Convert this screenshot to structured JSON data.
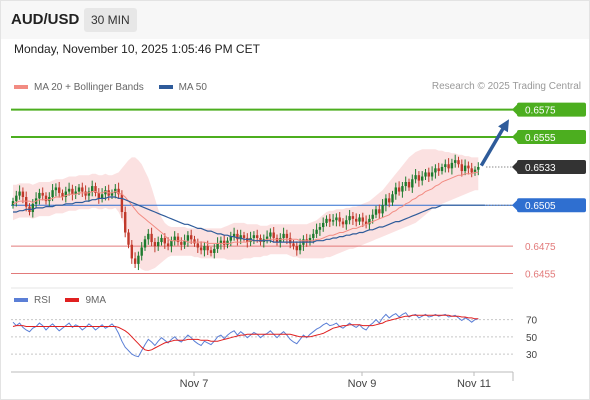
{
  "header": {
    "symbol": "AUD/USD",
    "interval": "30 MIN"
  },
  "timestamp": "Monday, November 10, 2025 1:05:46 PM CET",
  "legend": {
    "ma20": {
      "label": "MA 20 + Bollinger Bands",
      "color": "#f28b82"
    },
    "ma50": {
      "label": "MA 50",
      "color": "#2e5b9a"
    },
    "rsi": {
      "label": "RSI",
      "color": "#5b7fd6"
    },
    "ma9": {
      "label": "9MA",
      "color": "#e02020"
    }
  },
  "credit": "Research © 2025 Trading Central",
  "colors": {
    "up": "#1e7b2e",
    "down": "#c0392b",
    "target": "#4cae1f",
    "support": "#e27a7a",
    "pivot": "#2f6fd0",
    "price": "#333333",
    "arrow": "#2e5b9a"
  },
  "chart_data": [
    {
      "type": "candlestick",
      "price_range": [
        0.6448,
        0.6585
      ],
      "x_ticks": [
        "Nov 7",
        "Nov 9",
        "Nov 11"
      ],
      "levels": [
        {
          "value": 0.6575,
          "label": "0.6575",
          "kind": "target"
        },
        {
          "value": 0.6555,
          "label": "0.6555",
          "kind": "target"
        },
        {
          "value": 0.6533,
          "label": "0.6533",
          "kind": "price"
        },
        {
          "value": 0.6505,
          "label": "0.6505",
          "kind": "pivot"
        },
        {
          "value": 0.6475,
          "label": "0.6475",
          "kind": "support"
        },
        {
          "value": 0.6455,
          "label": "0.6455",
          "kind": "support"
        }
      ],
      "close": [
        0.6508,
        0.6512,
        0.6515,
        0.6511,
        0.6504,
        0.65,
        0.6506,
        0.651,
        0.6514,
        0.6512,
        0.6508,
        0.6511,
        0.6516,
        0.6518,
        0.6514,
        0.6511,
        0.6515,
        0.6517,
        0.6513,
        0.6515,
        0.6518,
        0.6515,
        0.6512,
        0.6515,
        0.6519,
        0.6514,
        0.651,
        0.6513,
        0.6516,
        0.6512,
        0.6514,
        0.6517,
        0.6513,
        0.65,
        0.6485,
        0.6476,
        0.6466,
        0.6462,
        0.6468,
        0.6474,
        0.648,
        0.6484,
        0.6478,
        0.6475,
        0.6478,
        0.6481,
        0.6477,
        0.6475,
        0.6479,
        0.6482,
        0.6478,
        0.6476,
        0.6479,
        0.6483,
        0.648,
        0.6477,
        0.6474,
        0.6472,
        0.6475,
        0.6472,
        0.647,
        0.6473,
        0.6477,
        0.6479,
        0.6476,
        0.6479,
        0.6482,
        0.6484,
        0.648,
        0.6483,
        0.6481,
        0.6478,
        0.6481,
        0.6483,
        0.6481,
        0.6478,
        0.648,
        0.6482,
        0.6485,
        0.6481,
        0.6478,
        0.6481,
        0.6484,
        0.6481,
        0.6477,
        0.6475,
        0.6472,
        0.6476,
        0.648,
        0.6478,
        0.6481,
        0.6484,
        0.6487,
        0.6489,
        0.6492,
        0.6495,
        0.6493,
        0.6494,
        0.6496,
        0.6493,
        0.6491,
        0.6494,
        0.6497,
        0.6495,
        0.6493,
        0.6496,
        0.6493,
        0.6491,
        0.6495,
        0.6498,
        0.6502,
        0.6499,
        0.6505,
        0.651,
        0.6507,
        0.6513,
        0.6518,
        0.6515,
        0.6519,
        0.6522,
        0.6518,
        0.6524,
        0.6527,
        0.6523,
        0.6526,
        0.6529,
        0.6526,
        0.6529,
        0.6532,
        0.653,
        0.6533,
        0.6535,
        0.6532,
        0.6536,
        0.6538,
        0.6535,
        0.653,
        0.6534,
        0.6532,
        0.6529,
        0.6531,
        0.6533
      ],
      "ma20": [
        0.6506,
        0.6507,
        0.6508,
        0.6508,
        0.6508,
        0.6508,
        0.6507,
        0.6508,
        0.6509,
        0.6509,
        0.6509,
        0.6509,
        0.651,
        0.6511,
        0.6511,
        0.6511,
        0.6512,
        0.6513,
        0.6513,
        0.6513,
        0.6514,
        0.6514,
        0.6514,
        0.6514,
        0.6515,
        0.6515,
        0.6514,
        0.6514,
        0.6515,
        0.6514,
        0.6514,
        0.6515,
        0.6514,
        0.6513,
        0.6511,
        0.6508,
        0.6505,
        0.6502,
        0.6499,
        0.6497,
        0.6495,
        0.6493,
        0.6491,
        0.6489,
        0.6487,
        0.6485,
        0.6483,
        0.648,
        0.6479,
        0.6479,
        0.6479,
        0.6479,
        0.6479,
        0.6478,
        0.6478,
        0.6478,
        0.6478,
        0.6478,
        0.6478,
        0.6477,
        0.6477,
        0.6477,
        0.6477,
        0.6477,
        0.6477,
        0.6477,
        0.6477,
        0.6478,
        0.6478,
        0.6478,
        0.6478,
        0.6478,
        0.6479,
        0.6479,
        0.6479,
        0.6479,
        0.6479,
        0.648,
        0.648,
        0.648,
        0.648,
        0.648,
        0.648,
        0.648,
        0.648,
        0.648,
        0.648,
        0.6479,
        0.6479,
        0.6479,
        0.6479,
        0.6479,
        0.648,
        0.648,
        0.6481,
        0.6482,
        0.6483,
        0.6483,
        0.6484,
        0.6485,
        0.6485,
        0.6486,
        0.6487,
        0.6488,
        0.6488,
        0.6489,
        0.649,
        0.6491,
        0.6492,
        0.6493,
        0.6494,
        0.6495,
        0.6496,
        0.6497,
        0.6498,
        0.65,
        0.6501,
        0.6503,
        0.6504,
        0.6506,
        0.6507,
        0.6509,
        0.651,
        0.6512,
        0.6513,
        0.6515,
        0.6516,
        0.6517,
        0.6519,
        0.652,
        0.6522,
        0.6523,
        0.6524,
        0.6525,
        0.6526,
        0.6527,
        0.6527,
        0.6528,
        0.6528,
        0.6528,
        0.6529,
        0.6529
      ],
      "bb_upper": [
        0.652,
        0.652,
        0.6521,
        0.6521,
        0.6521,
        0.6521,
        0.652,
        0.6521,
        0.6522,
        0.6522,
        0.6522,
        0.6522,
        0.6523,
        0.6524,
        0.6524,
        0.6524,
        0.6525,
        0.6526,
        0.6526,
        0.6526,
        0.6527,
        0.6527,
        0.6527,
        0.6527,
        0.6528,
        0.6528,
        0.6527,
        0.6527,
        0.6528,
        0.6527,
        0.6527,
        0.6528,
        0.6529,
        0.6532,
        0.6535,
        0.6538,
        0.654,
        0.654,
        0.6538,
        0.6535,
        0.653,
        0.6525,
        0.6518,
        0.651,
        0.6502,
        0.6496,
        0.6492,
        0.649,
        0.6489,
        0.6489,
        0.6489,
        0.6489,
        0.6489,
        0.6488,
        0.6488,
        0.6488,
        0.6488,
        0.6488,
        0.6488,
        0.6488,
        0.6488,
        0.6488,
        0.6488,
        0.6488,
        0.6489,
        0.649,
        0.6491,
        0.6492,
        0.6492,
        0.6492,
        0.6492,
        0.6491,
        0.6491,
        0.6491,
        0.6491,
        0.649,
        0.649,
        0.649,
        0.6491,
        0.6491,
        0.6491,
        0.6491,
        0.6491,
        0.6491,
        0.6491,
        0.6491,
        0.6491,
        0.6491,
        0.6491,
        0.6491,
        0.6492,
        0.6493,
        0.6494,
        0.6496,
        0.6498,
        0.65,
        0.6501,
        0.6501,
        0.6502,
        0.6502,
        0.6502,
        0.6503,
        0.6503,
        0.6504,
        0.6504,
        0.6505,
        0.6506,
        0.6507,
        0.6508,
        0.651,
        0.6512,
        0.6514,
        0.6516,
        0.6519,
        0.6522,
        0.6525,
        0.6528,
        0.6531,
        0.6534,
        0.6537,
        0.654,
        0.6542,
        0.6544,
        0.6545,
        0.6546,
        0.6546,
        0.6546,
        0.6546,
        0.6546,
        0.6545,
        0.6545,
        0.6544,
        0.6544,
        0.6543,
        0.6543,
        0.6542,
        0.6542,
        0.6541,
        0.6541,
        0.654,
        0.654,
        0.654
      ],
      "bb_lower": [
        0.6494,
        0.6495,
        0.6496,
        0.6496,
        0.6496,
        0.6496,
        0.6495,
        0.6496,
        0.6497,
        0.6497,
        0.6497,
        0.6497,
        0.6498,
        0.6499,
        0.6499,
        0.6499,
        0.65,
        0.6501,
        0.6501,
        0.6501,
        0.6502,
        0.6502,
        0.6502,
        0.6502,
        0.6503,
        0.6503,
        0.6502,
        0.6502,
        0.6503,
        0.6502,
        0.6502,
        0.6503,
        0.65,
        0.6495,
        0.6488,
        0.648,
        0.6472,
        0.6465,
        0.646,
        0.6458,
        0.6457,
        0.6457,
        0.6458,
        0.6459,
        0.6461,
        0.6463,
        0.6465,
        0.6467,
        0.6468,
        0.6468,
        0.6468,
        0.6468,
        0.6468,
        0.6468,
        0.6468,
        0.6467,
        0.6467,
        0.6466,
        0.6466,
        0.6466,
        0.6466,
        0.6466,
        0.6466,
        0.6466,
        0.6466,
        0.6465,
        0.6465,
        0.6465,
        0.6465,
        0.6465,
        0.6466,
        0.6466,
        0.6466,
        0.6467,
        0.6467,
        0.6467,
        0.6468,
        0.6468,
        0.6469,
        0.6469,
        0.6469,
        0.6469,
        0.6469,
        0.6469,
        0.6468,
        0.6467,
        0.6467,
        0.6466,
        0.6466,
        0.6466,
        0.6466,
        0.6466,
        0.6466,
        0.6466,
        0.6466,
        0.6467,
        0.6467,
        0.6468,
        0.6469,
        0.647,
        0.6471,
        0.6472,
        0.6473,
        0.6473,
        0.6474,
        0.6475,
        0.6476,
        0.6477,
        0.6478,
        0.6479,
        0.648,
        0.6481,
        0.6482,
        0.6483,
        0.6484,
        0.6485,
        0.6486,
        0.6487,
        0.6488,
        0.6489,
        0.649,
        0.6491,
        0.6492,
        0.6494,
        0.6496,
        0.6498,
        0.65,
        0.6502,
        0.6503,
        0.6504,
        0.6506,
        0.6507,
        0.6508,
        0.6509,
        0.651,
        0.6511,
        0.6512,
        0.6513,
        0.6514,
        0.6515,
        0.6516,
        0.6516,
        0.6517,
        0.6517
      ],
      "ma50": [
        0.65,
        0.65,
        0.6501,
        0.6501,
        0.6502,
        0.6502,
        0.6502,
        0.6503,
        0.6503,
        0.6503,
        0.6504,
        0.6504,
        0.6504,
        0.6505,
        0.6505,
        0.6505,
        0.6506,
        0.6506,
        0.6506,
        0.6507,
        0.6507,
        0.6507,
        0.6508,
        0.6508,
        0.6509,
        0.6509,
        0.651,
        0.651,
        0.651,
        0.6511,
        0.6511,
        0.6511,
        0.651,
        0.651,
        0.6509,
        0.6508,
        0.6507,
        0.6506,
        0.6505,
        0.6504,
        0.6503,
        0.6502,
        0.6501,
        0.65,
        0.6499,
        0.6498,
        0.6497,
        0.6496,
        0.6495,
        0.6494,
        0.6493,
        0.6492,
        0.6491,
        0.6491,
        0.649,
        0.6489,
        0.6488,
        0.6488,
        0.6487,
        0.6486,
        0.6486,
        0.6485,
        0.6484,
        0.6484,
        0.6483,
        0.6483,
        0.6482,
        0.6482,
        0.6481,
        0.6481,
        0.648,
        0.648,
        0.648,
        0.6479,
        0.6479,
        0.6479,
        0.6479,
        0.6479,
        0.6479,
        0.6478,
        0.6478,
        0.6478,
        0.6478,
        0.6478,
        0.6478,
        0.6478,
        0.6478,
        0.6478,
        0.6478,
        0.6478,
        0.6478,
        0.6478,
        0.6479,
        0.6479,
        0.6479,
        0.648,
        0.648,
        0.6481,
        0.6481,
        0.6482,
        0.6482,
        0.6483,
        0.6483,
        0.6484,
        0.6484,
        0.6485,
        0.6485,
        0.6486,
        0.6487,
        0.6487,
        0.6488,
        0.6489,
        0.6489,
        0.649,
        0.6491,
        0.6492,
        0.6493,
        0.6493,
        0.6494,
        0.6495,
        0.6496,
        0.6497,
        0.6498,
        0.6499,
        0.65,
        0.6501,
        0.6502,
        0.6503,
        0.6503,
        0.6504,
        0.6505,
        0.6505,
        0.6505,
        0.6505,
        0.6505,
        0.6505,
        0.6505,
        0.6505,
        0.6505,
        0.6505,
        0.6505,
        0.6505,
        0.6505,
        0.6505
      ],
      "projection": {
        "from": 0.6534,
        "to": 0.6568
      }
    },
    {
      "type": "line",
      "y_ticks": [
        "70",
        "50",
        "30"
      ],
      "ylim": [
        15,
        80
      ],
      "series": [
        {
          "name": "RSI",
          "values": [
            67,
            63,
            66,
            61,
            58,
            56,
            60,
            62,
            66,
            63,
            58,
            62,
            65,
            61,
            57,
            60,
            63,
            66,
            61,
            64,
            62,
            58,
            61,
            65,
            62,
            58,
            61,
            64,
            60,
            62,
            65,
            61,
            54,
            45,
            38,
            34,
            30,
            28,
            27,
            34,
            41,
            47,
            44,
            40,
            45,
            49,
            46,
            43,
            47,
            50,
            46,
            44,
            48,
            52,
            49,
            45,
            42,
            40,
            45,
            43,
            41,
            45,
            50,
            52,
            48,
            52,
            55,
            57,
            52,
            56,
            53,
            49,
            52,
            55,
            53,
            49,
            52,
            54,
            57,
            53,
            49,
            53,
            56,
            52,
            47,
            44,
            42,
            47,
            52,
            49,
            53,
            56,
            59,
            61,
            64,
            66,
            63,
            64,
            66,
            62,
            60,
            63,
            66,
            63,
            61,
            64,
            60,
            58,
            63,
            66,
            70,
            66,
            72,
            76,
            72,
            75,
            77,
            73,
            76,
            78,
            73,
            75,
            76,
            72,
            74,
            76,
            73,
            74,
            76,
            74,
            75,
            76,
            73,
            74,
            75,
            72,
            69,
            72,
            70,
            67,
            70,
            71
          ]
        },
        {
          "name": "9MA",
          "values": [
            62,
            63,
            63,
            63,
            62,
            62,
            62,
            62,
            62,
            62,
            62,
            62,
            62,
            62,
            62,
            62,
            62,
            62,
            62,
            62,
            62,
            62,
            62,
            62,
            62,
            62,
            62,
            62,
            62,
            62,
            62,
            62,
            61,
            59,
            57,
            54,
            50,
            46,
            42,
            38,
            35,
            34,
            35,
            37,
            39,
            41,
            43,
            44,
            45,
            46,
            46,
            46,
            46,
            47,
            47,
            47,
            47,
            46,
            46,
            46,
            45,
            45,
            45,
            46,
            47,
            48,
            49,
            50,
            51,
            52,
            52,
            53,
            53,
            53,
            53,
            53,
            53,
            53,
            53,
            53,
            53,
            53,
            53,
            53,
            53,
            52,
            51,
            50,
            50,
            50,
            50,
            51,
            52,
            53,
            54,
            56,
            58,
            60,
            61,
            62,
            63,
            63,
            64,
            64,
            64,
            64,
            63,
            63,
            63,
            63,
            64,
            65,
            66,
            68,
            69,
            70,
            71,
            72,
            73,
            74,
            74,
            75,
            75,
            75,
            75,
            75,
            75,
            75,
            75,
            75,
            75,
            75,
            75,
            74,
            74,
            74,
            73,
            73,
            72,
            72,
            71,
            71
          ]
        }
      ]
    }
  ]
}
